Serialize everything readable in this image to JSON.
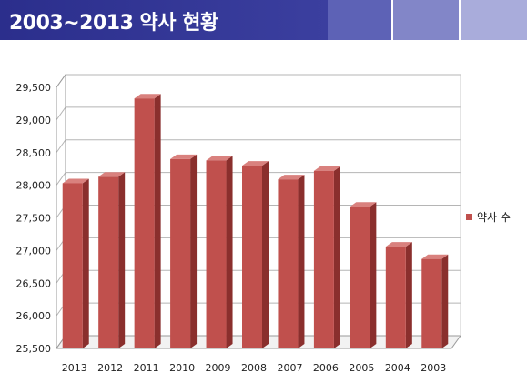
{
  "header": {
    "title": "2003~2013 약사 현황"
  },
  "colors": {
    "banner_dark": "#2e318f",
    "banner_mid": "#5a5fb8",
    "banner_light": "#9a9fd6",
    "bar_front": "#c0504d",
    "bar_side": "#8a2f2d",
    "bar_top": "#d9817e"
  },
  "chart_data": {
    "type": "bar",
    "title": "",
    "xlabel": "",
    "ylabel": "",
    "categories": [
      "2013",
      "2012",
      "2011",
      "2010",
      "2009",
      "2008",
      "2007",
      "2006",
      "2005",
      "2004",
      "2003"
    ],
    "series": [
      {
        "name": "약사 수",
        "values": [
          28030,
          28130,
          29330,
          28400,
          28380,
          28300,
          28090,
          28220,
          27670,
          27060,
          26870
        ]
      }
    ],
    "ylim": [
      25500,
      29500
    ],
    "yticks": [
      "25,500",
      "26,000",
      "26,500",
      "27,000",
      "27,500",
      "28,000",
      "28,500",
      "29,000",
      "29,500"
    ],
    "ytick_values": [
      25500,
      26000,
      26500,
      27000,
      27500,
      28000,
      28500,
      29000,
      29500
    ],
    "grid": true,
    "legend_position": "right"
  }
}
